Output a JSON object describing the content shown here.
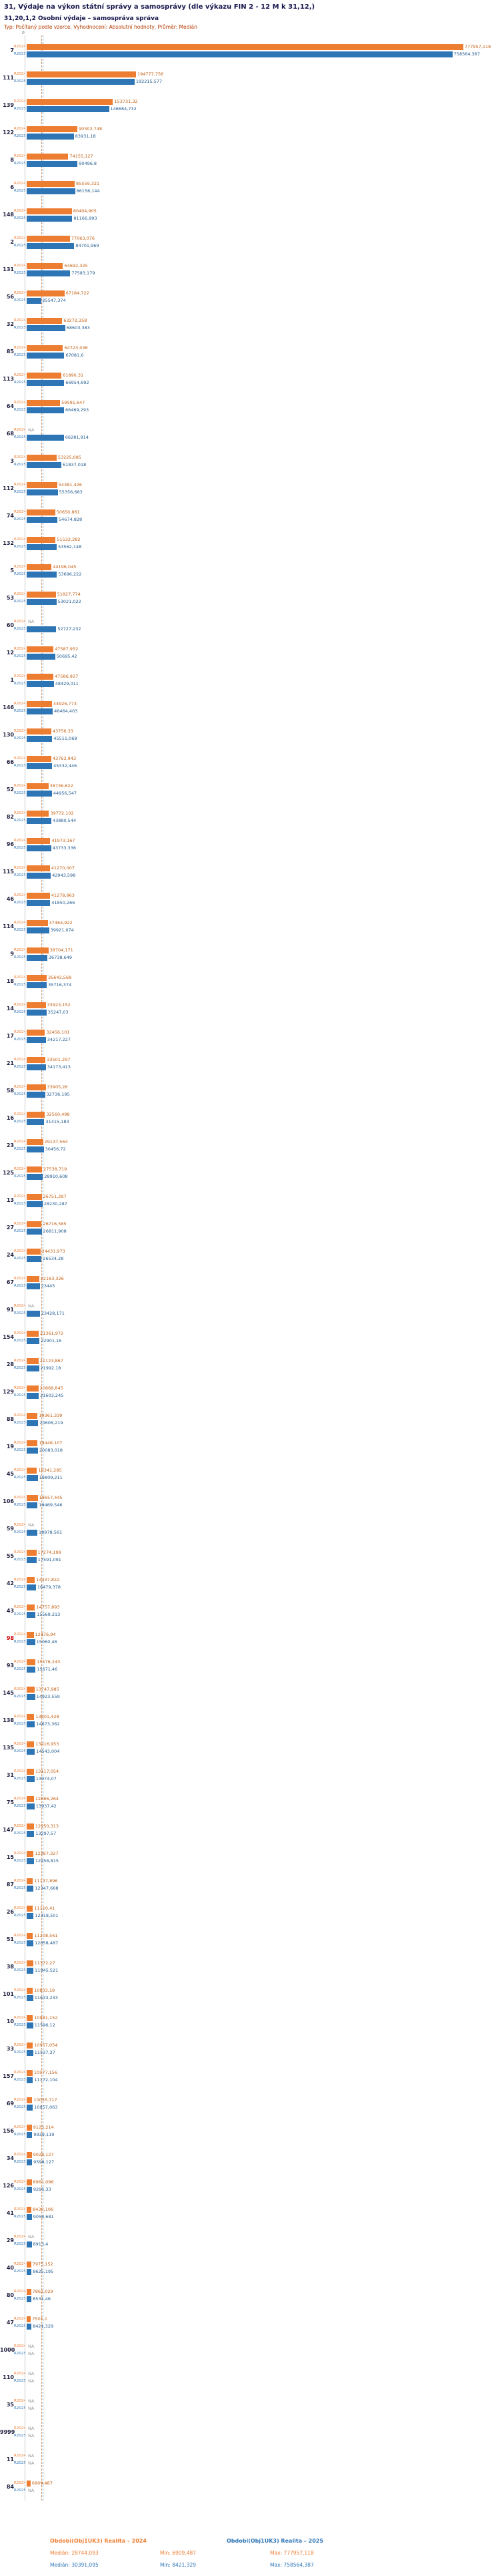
{
  "header": {
    "title": "31, Výdaje na výkon státní správy a samosprávy (dle výkazu FIN 2 - 12 M k 31,12,)",
    "subtitle": "31,20,1,2 Osobní výdaje – samospráva správa",
    "type_line": "Typ: Počítaný podle vzorce, Vyhodnocení: Absolutní hodnoty, Průměr: Medián"
  },
  "colors": {
    "series2024": "#ED7D31",
    "series2025": "#2E75B6",
    "na_text": "#999999",
    "highlight_row": "#d00000",
    "meta_text": "#b43c00"
  },
  "series_labels": {
    "s2024": "R2024",
    "s2025": "R2025",
    "na_label": "NA"
  },
  "chart_data": {
    "type": "bar",
    "orientation": "horizontal",
    "title": "31,20,1,2 Osobní výdaje – samospráva správa",
    "legend": [
      "Obdobi(Obj1UK3) Realita – 2024",
      "Obdobi(Obj1UK3) Realita – 2025"
    ],
    "legend_position": "bottom",
    "grid": false,
    "x_axis": {
      "min": 0,
      "max": 777957.118,
      "zero_tick": "0"
    },
    "medians": {
      "r2024": 28744.093,
      "r2025": 30391.095
    },
    "highlighted_category": "98",
    "rows": [
      {
        "id": "7",
        "v2024": "777957,118",
        "v2025": "758564,387"
      },
      {
        "id": "111",
        "v2024": "194777,756",
        "v2025": "192215,577"
      },
      {
        "id": "139",
        "v2024": "153731,32",
        "v2025": "146684,732"
      },
      {
        "id": "122",
        "v2024": "90302,748",
        "v2025": "83931,18"
      },
      {
        "id": "8",
        "v2024": "74155,127",
        "v2025": "90496,8"
      },
      {
        "id": "6",
        "v2024": "85559,321",
        "v2025": "86156,144"
      },
      {
        "id": "148",
        "v2024": "80404,905",
        "v2025": "81166,993"
      },
      {
        "id": "2",
        "v2024": "77063,076",
        "v2025": "84701,969"
      },
      {
        "id": "131",
        "v2024": "64692,325",
        "v2025": "77583,179"
      },
      {
        "id": "56",
        "v2024": "67184,722",
        "v2025": "25547,374"
      },
      {
        "id": "32",
        "v2024": "63272,358",
        "v2025": "68603,383"
      },
      {
        "id": "85",
        "v2024": "64723,036",
        "v2025": "67081,6"
      },
      {
        "id": "113",
        "v2024": "61890,31",
        "v2025": "66954,692"
      },
      {
        "id": "64",
        "v2024": "59591,647",
        "v2025": "66469,293"
      },
      {
        "id": "68",
        "v2024": null,
        "v2025": "66281,914"
      },
      {
        "id": "3",
        "v2024": "53225,085",
        "v2025": "61837,018"
      },
      {
        "id": "112",
        "v2024": "54381,426",
        "v2025": "55356,683"
      },
      {
        "id": "74",
        "v2024": "50650,861",
        "v2025": "54674,828"
      },
      {
        "id": "132",
        "v2024": "51532,282",
        "v2025": "53562,148"
      },
      {
        "id": "5",
        "v2024": "44196,045",
        "v2025": "53696,222"
      },
      {
        "id": "53",
        "v2024": "51827,774",
        "v2025": "53021,022"
      },
      {
        "id": "60",
        "v2024": null,
        "v2025": "52727,232"
      },
      {
        "id": "12",
        "v2024": "47587,952",
        "v2025": "50695,42"
      },
      {
        "id": "1",
        "v2024": "47586,927",
        "v2025": "48429,011"
      },
      {
        "id": "146",
        "v2024": "44926,773",
        "v2025": "46464,403"
      },
      {
        "id": "130",
        "v2024": "43756,33",
        "v2025": "45511,068"
      },
      {
        "id": "66",
        "v2024": "43763,943",
        "v2025": "45332,446"
      },
      {
        "id": "52",
        "v2024": "38736,622",
        "v2025": "44956,547"
      },
      {
        "id": "82",
        "v2024": "39772,102",
        "v2025": "43880,544"
      },
      {
        "id": "96",
        "v2024": "41973,167",
        "v2025": "43733,336"
      },
      {
        "id": "115",
        "v2024": "41270,007",
        "v2025": "42943,598"
      },
      {
        "id": "46",
        "v2024": "41278,963",
        "v2025": "41850,266"
      },
      {
        "id": "114",
        "v2024": "37464,922",
        "v2025": "39921,074"
      },
      {
        "id": "9",
        "v2024": "38704,171",
        "v2025": "36738,649"
      },
      {
        "id": "18",
        "v2024": "35643,568",
        "v2025": "35716,374"
      },
      {
        "id": "14",
        "v2024": "33923,152",
        "v2025": "35247,03"
      },
      {
        "id": "17",
        "v2024": "32456,101",
        "v2025": "34217,227"
      },
      {
        "id": "21",
        "v2024": "33501,297",
        "v2025": "34173,413"
      },
      {
        "id": "58",
        "v2024": "33905,26",
        "v2025": "32736,195"
      },
      {
        "id": "16",
        "v2024": "32560,498",
        "v2025": "31415,183"
      },
      {
        "id": "23",
        "v2024": "29137,564",
        "v2025": "30456,72"
      },
      {
        "id": "125",
        "v2024": "27538,719",
        "v2025": "28910,608"
      },
      {
        "id": "13",
        "v2024": "26751,297",
        "v2025": "28230,287"
      },
      {
        "id": "27",
        "v2024": "26716,585",
        "v2025": "26811,908"
      },
      {
        "id": "24",
        "v2024": "24431,973",
        "v2025": "26534,28"
      },
      {
        "id": "67",
        "v2024": "22163,326",
        "v2025": "23445"
      },
      {
        "id": "91",
        "v2024": null,
        "v2025": "23428,171"
      },
      {
        "id": "154",
        "v2024": "21361,972",
        "v2025": "22901,16"
      },
      {
        "id": "28",
        "v2024": "21123,867",
        "v2025": "21992,18"
      },
      {
        "id": "129",
        "v2024": "20868,845",
        "v2025": "21603,245"
      },
      {
        "id": "88",
        "v2024": "19361,339",
        "v2025": "20606,219"
      },
      {
        "id": "19",
        "v2024": "19446,107",
        "v2025": "20083,018"
      },
      {
        "id": "45",
        "v2024": "18341,285",
        "v2025": "19809,211"
      },
      {
        "id": "106",
        "v2024": "19657,445",
        "v2025": "19469,546"
      },
      {
        "id": "59",
        "v2024": null,
        "v2025": "18978,561"
      },
      {
        "id": "55",
        "v2024": "17274,199",
        "v2025": "17591,091"
      },
      {
        "id": "42",
        "v2024": "14437,822",
        "v2025": "16479,378"
      },
      {
        "id": "43",
        "v2024": "14757,893",
        "v2025": "15569,213"
      },
      {
        "id": "98",
        "v2024": "12476,94",
        "v2025": "15060,46"
      },
      {
        "id": "93",
        "v2024": "15576,243",
        "v2025": "15671,46"
      },
      {
        "id": "145",
        "v2024": "13747,985",
        "v2025": "14923,559"
      },
      {
        "id": "138",
        "v2024": "13601,428",
        "v2025": "14673,362"
      },
      {
        "id": "135",
        "v2024": "13416,953",
        "v2025": "14543,004"
      },
      {
        "id": "31",
        "v2024": "13117,054",
        "v2025": "13974,07"
      },
      {
        "id": "75",
        "v2024": "12886,264",
        "v2025": "13937,42"
      },
      {
        "id": "147",
        "v2024": "12950,313",
        "v2025": "13297,57"
      },
      {
        "id": "15",
        "v2024": "12267,327",
        "v2025": "12956,815"
      },
      {
        "id": "87",
        "v2024": "11137,896",
        "v2025": "12347,668"
      },
      {
        "id": "26",
        "v2024": "11110,41",
        "v2025": "12318,501"
      },
      {
        "id": "51",
        "v2024": "11208,561",
        "v2025": "12058,487"
      },
      {
        "id": "38",
        "v2024": "11372,27",
        "v2025": "11945,521"
      },
      {
        "id": "101",
        "v2024": "10803,19",
        "v2025": "11633,233"
      },
      {
        "id": "10",
        "v2024": "10981,152",
        "v2025": "11596,12"
      },
      {
        "id": "33",
        "v2024": "10957,054",
        "v2025": "11537,37"
      },
      {
        "id": "157",
        "v2024": "10577,156",
        "v2025": "11172,104"
      },
      {
        "id": "69",
        "v2024": "10055,717",
        "v2025": "10957,063"
      },
      {
        "id": "156",
        "v2024": "9125,214",
        "v2025": "9939,119"
      },
      {
        "id": "34",
        "v2024": "9028,127",
        "v2025": "9598,127"
      },
      {
        "id": "126",
        "v2024": "8961,096",
        "v2025": "9295,33"
      },
      {
        "id": "41",
        "v2024": "8439,106",
        "v2025": "9058,681"
      },
      {
        "id": "29",
        "v2024": null,
        "v2025": "8913,4"
      },
      {
        "id": "40",
        "v2024": "7975,152",
        "v2025": "8625,195"
      },
      {
        "id": "80",
        "v2024": "7862,029",
        "v2025": "8531,46"
      },
      {
        "id": "47",
        "v2024": "7501,1",
        "v2025": "8421,329"
      },
      {
        "id": "1000",
        "v2024": null,
        "v2025": null
      },
      {
        "id": "110",
        "v2024": null,
        "v2025": null
      },
      {
        "id": "35",
        "v2024": null,
        "v2025": null
      },
      {
        "id": "9999",
        "v2024": null,
        "v2025": null
      },
      {
        "id": "11",
        "v2024": null,
        "v2025": null
      },
      {
        "id": "84",
        "v2024": "6909,487",
        "v2025": null
      }
    ]
  },
  "footer": {
    "legend_2024": "Obdobi(Obj1UK3) Realita – 2024",
    "legend_2025": "Obdobi(Obj1UK3) Realita – 2025",
    "stats_2024": {
      "median": "Medián: 28744,093",
      "min": "Min: 6909,487",
      "max": "Max: 777957,118"
    },
    "stats_2025": {
      "median": "Medián: 30391,095",
      "min": "Min: 8421,329",
      "max": "Max: 758564,387"
    }
  }
}
